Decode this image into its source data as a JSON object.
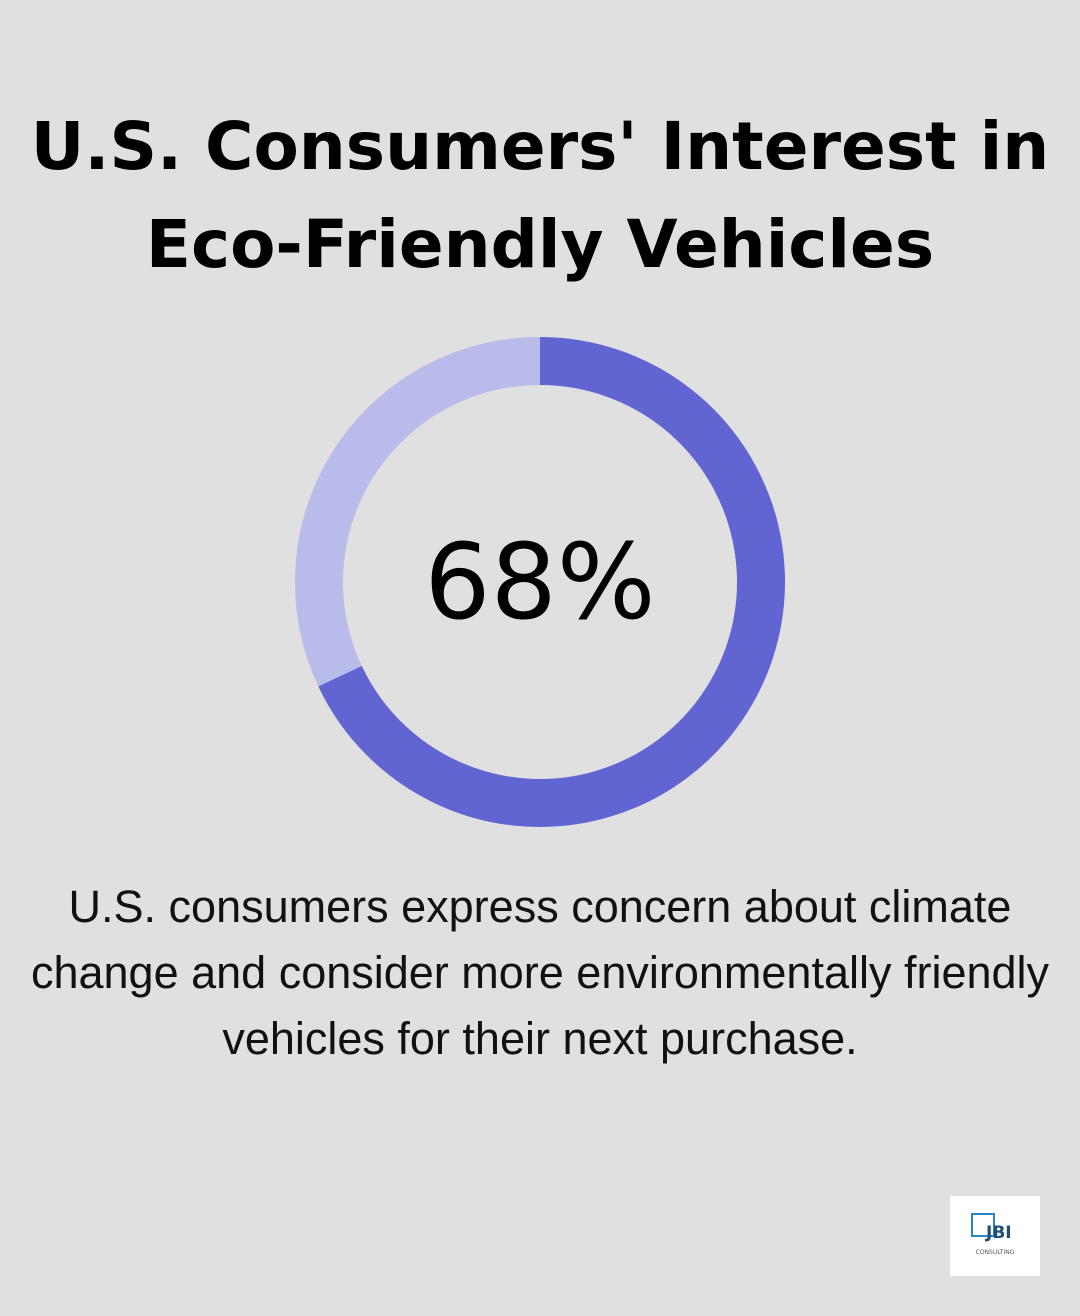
{
  "chart_data": {
    "type": "pie",
    "variant": "donut",
    "title": "U.S. Consumers' Interest in Eco-Friendly Vehicles",
    "center_label": "68%",
    "values": [
      68,
      32
    ],
    "colors": [
      "#6065d1",
      "#b9bbea"
    ],
    "description": "U.S. consumers express concern about climate change and consider more environmentally friendly vehicles for their next purchase."
  },
  "logo": {
    "text": "JBI",
    "subtext": "CONSULTING",
    "color": "#1f6f9e"
  },
  "background": "#dfe0df"
}
